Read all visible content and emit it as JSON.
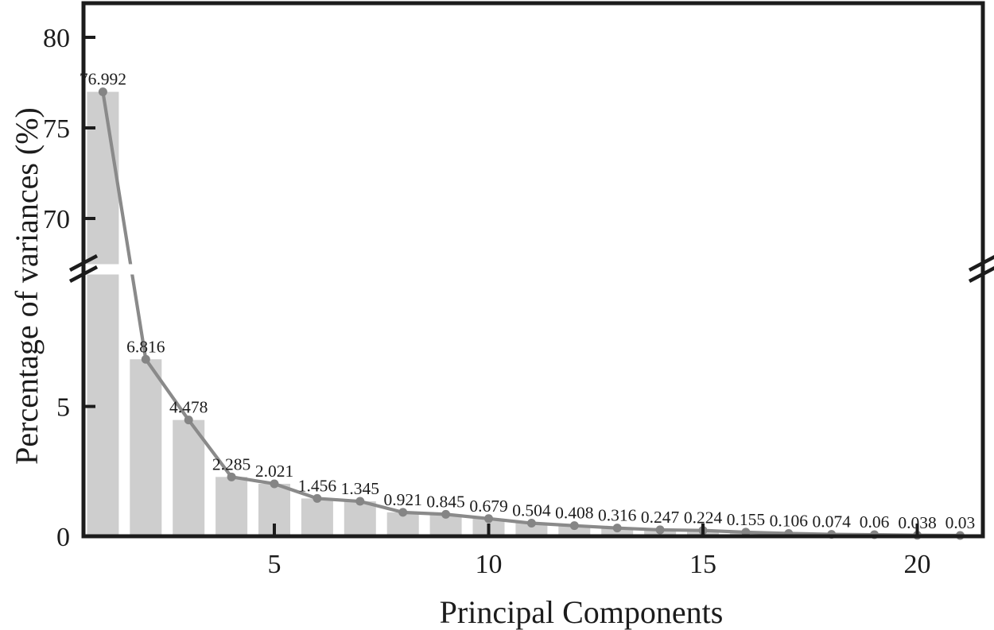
{
  "chart_data": {
    "type": "bar",
    "overlay": "line",
    "title": "",
    "xlabel": "Principal Components",
    "ylabel": "Percentage of variances (%)",
    "categories": [
      1,
      2,
      3,
      4,
      5,
      6,
      7,
      8,
      9,
      10,
      11,
      12,
      13,
      14,
      15,
      16,
      17,
      18,
      19,
      20,
      21
    ],
    "values": [
      76.992,
      6.816,
      4.478,
      2.285,
      2.021,
      1.456,
      1.345,
      0.921,
      0.845,
      0.679,
      0.504,
      0.408,
      0.316,
      0.247,
      0.224,
      0.155,
      0.106,
      0.074,
      0.06,
      0.038,
      0.03
    ],
    "point_labels": [
      "76.992",
      "6.816",
      "4.478",
      "2.285",
      "2.021",
      "1.456",
      "1.345",
      "0.921",
      "0.845",
      "0.679",
      "0.504",
      "0.408",
      "0.316",
      "0.247",
      "0.224",
      "0.155",
      "0.106",
      "0.074",
      "0.06",
      "0.038",
      "0.03"
    ],
    "x_ticks": [
      5,
      10,
      15,
      20
    ],
    "y_axis": {
      "broken": true,
      "bottom_ticks": [
        5,
        0
      ],
      "top_ticks": [
        80,
        75,
        70
      ],
      "bottom_range": [
        0,
        10.4
      ],
      "top_range": [
        67.4,
        81.9
      ]
    },
    "grid": false,
    "legend": null,
    "colors": {
      "bar_fill": "#cecece",
      "line": "#8a8a8a",
      "marker": "#858585",
      "axis": "#1c1c1c",
      "text": "#1c1c1c",
      "background": "#ffffff"
    }
  }
}
